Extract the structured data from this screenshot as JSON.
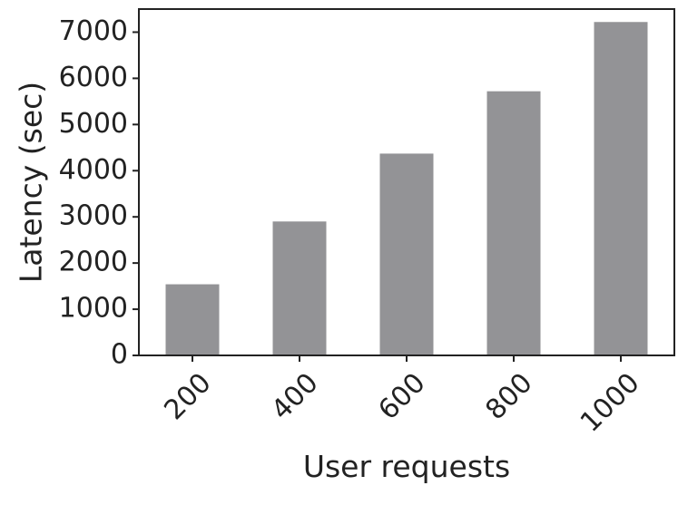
{
  "chart_data": {
    "type": "bar",
    "title": "",
    "xlabel": "User requests",
    "ylabel": "Latency (sec)",
    "categories": [
      "200",
      "400",
      "600",
      "800",
      "1000"
    ],
    "values": [
      1540,
      2900,
      4370,
      5720,
      7220
    ],
    "ylim": [
      0,
      7500
    ],
    "yticks": [
      0,
      1000,
      2000,
      3000,
      4000,
      5000,
      6000,
      7000
    ],
    "grid": false,
    "legend": "none",
    "bar_color": "#939396",
    "axis_color": "#222222"
  }
}
